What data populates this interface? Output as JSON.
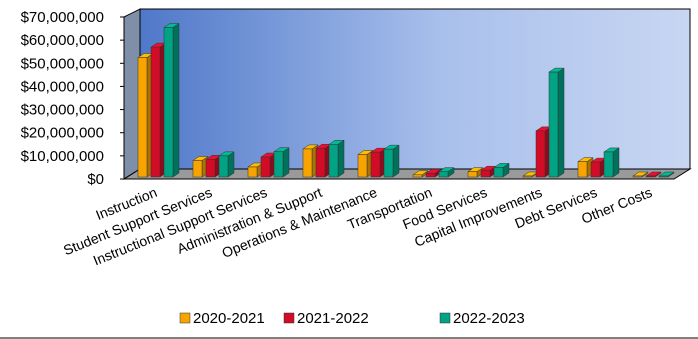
{
  "chart_data": {
    "type": "bar",
    "categories": [
      "Instruction",
      "Student Support Services",
      "Instructional Support Services",
      "Administration & Support",
      "Operations & Maintenance",
      "Transportation",
      "Food Services",
      "Capital Improvements",
      "Debt Services",
      "Other Costs"
    ],
    "series": [
      {
        "name": "2020-2021",
        "color": "#f7a400",
        "values": [
          52500000,
          8000000,
          5200000,
          13000000,
          10600000,
          1800000,
          3200000,
          1300000,
          7500000,
          200000
        ]
      },
      {
        "name": "2021-2022",
        "color": "#d20b27",
        "values": [
          57000000,
          8500000,
          9500000,
          13300000,
          11600000,
          2500000,
          3800000,
          20800000,
          7300000,
          400000
        ]
      },
      {
        "name": "2022-2023",
        "color": "#00a383",
        "values": [
          65500000,
          10000000,
          11800000,
          15000000,
          12900000,
          3200000,
          5000000,
          46200000,
          11700000,
          600000
        ]
      }
    ],
    "y_ticks": [
      "$0",
      "$10,000,000",
      "$20,000,000",
      "$30,000,000",
      "$40,000,000",
      "$50,000,000",
      "$60,000,000",
      "$70,000,000"
    ],
    "ylim": [
      0,
      70000000
    ],
    "legend_position": "bottom",
    "grid": false,
    "title": "",
    "xlabel": "",
    "ylabel": ""
  }
}
